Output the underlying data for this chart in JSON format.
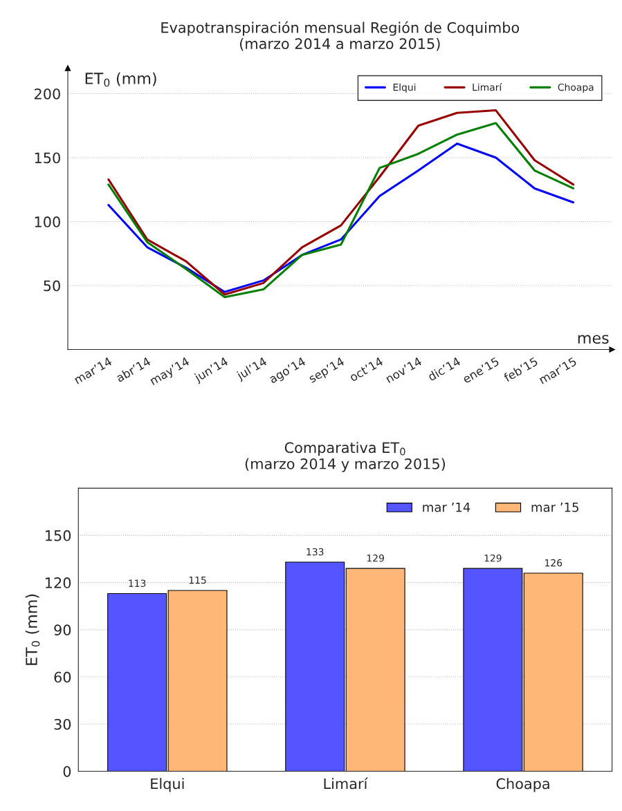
{
  "chart_data": [
    {
      "type": "line",
      "title": "Evapotranspiración mensual Región de Coquimbo\n(marzo 2014 a marzo 2015)",
      "ylabel": "ET$_{0}$ (mm)",
      "xlabel": "mes",
      "categories": [
        "mar’14",
        "abr’14",
        "may’14",
        "jun’14",
        "jul’14",
        "ago’14",
        "sep’14",
        "oct’14",
        "nov’14",
        "dic’14",
        "ene’15",
        "feb’15",
        "mar’15"
      ],
      "series": [
        {
          "name": "Elqui",
          "color": "#0000ff",
          "values": [
            113,
            80,
            64,
            45,
            54,
            74,
            86,
            120,
            140,
            161,
            150,
            126,
            115
          ]
        },
        {
          "name": "Limarí",
          "color": "#990000",
          "values": [
            133,
            86,
            69,
            43,
            52,
            80,
            97,
            135,
            175,
            185,
            187,
            148,
            129
          ]
        },
        {
          "name": "Choapa",
          "color": "#008000",
          "values": [
            129,
            84,
            63,
            41,
            47,
            74,
            82,
            142,
            153,
            168,
            177,
            140,
            126
          ]
        }
      ],
      "ylim": [
        0,
        220
      ],
      "yticks": [
        50,
        100,
        150,
        200
      ],
      "grid": "y",
      "legend": "top right",
      "line_style": "solid"
    },
    {
      "type": "bar",
      "title": "Comparativa ET$_{0}$\n(marzo 2014 y marzo 2015)",
      "ylabel": "ET$_{0}$ (mm)",
      "categories": [
        "Elqui",
        "Limarí",
        "Choapa"
      ],
      "series": [
        {
          "name": "mar ’14",
          "color": "#5555ff",
          "values": [
            113,
            133,
            129
          ]
        },
        {
          "name": "mar ’15",
          "color": "#ffb777",
          "values": [
            115,
            129,
            126
          ]
        }
      ],
      "ylim": [
        0,
        180
      ],
      "yticks": [
        0,
        30,
        60,
        90,
        120,
        150
      ],
      "grid": "y",
      "legend": "top right",
      "data_labels": true
    }
  ]
}
